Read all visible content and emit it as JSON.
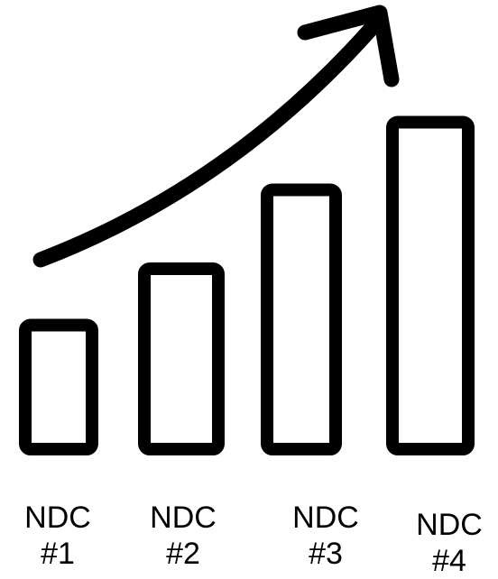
{
  "chart_data": {
    "type": "bar",
    "categories": [
      "NDC\n#1",
      "NDC\n#2",
      "NDC\n#3",
      "NDC\n#4"
    ],
    "values": [
      1.1,
      1.6,
      2.3,
      2.9
    ],
    "title": "",
    "xlabel": "",
    "ylabel": "",
    "ylim": [
      0,
      3
    ],
    "grid": false,
    "legend": "none",
    "annotations": [
      "upward trend arrow"
    ],
    "colors": {
      "stroke": "#000000",
      "background": "#ffffff"
    }
  }
}
